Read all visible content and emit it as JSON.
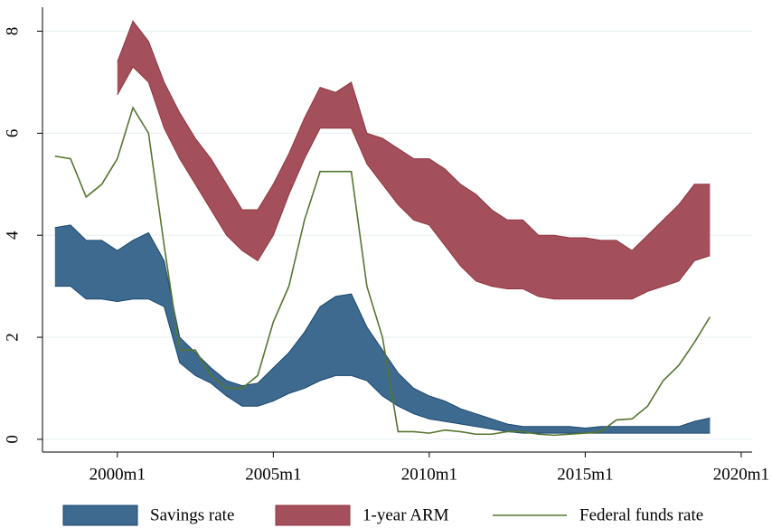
{
  "chart_data": {
    "type": "range-area",
    "x": [
      1998,
      1998.5,
      1999,
      1999.5,
      2000,
      2000.5,
      2001,
      2001.5,
      2002,
      2002.5,
      2003,
      2003.5,
      2004,
      2004.5,
      2005,
      2005.5,
      2006,
      2006.5,
      2007,
      2007.5,
      2008,
      2008.5,
      2009,
      2009.5,
      2010,
      2010.5,
      2011,
      2011.5,
      2012,
      2012.5,
      2013,
      2013.5,
      2014,
      2014.5,
      2015,
      2015.5,
      2016,
      2016.5,
      2017,
      2017.5,
      2018,
      2018.5,
      2019
    ],
    "series": [
      {
        "name": "Savings rate",
        "kind": "band",
        "color": "#3e6a8f",
        "edge": "#1a476f",
        "high": [
          4.15,
          4.2,
          3.9,
          3.9,
          3.7,
          3.9,
          4.05,
          3.5,
          2.0,
          1.7,
          1.4,
          1.15,
          1.05,
          1.1,
          1.4,
          1.7,
          2.1,
          2.6,
          2.8,
          2.85,
          2.2,
          1.75,
          1.3,
          1.0,
          0.85,
          0.75,
          0.6,
          0.5,
          0.4,
          0.3,
          0.25,
          0.25,
          0.25,
          0.25,
          0.22,
          0.25,
          0.25,
          0.25,
          0.25,
          0.25,
          0.25,
          0.35,
          0.42
        ],
        "low": [
          3.0,
          3.0,
          2.75,
          2.75,
          2.7,
          2.75,
          2.75,
          2.6,
          1.5,
          1.25,
          1.1,
          0.85,
          0.65,
          0.65,
          0.75,
          0.9,
          1.0,
          1.15,
          1.25,
          1.25,
          1.15,
          0.85,
          0.65,
          0.5,
          0.4,
          0.35,
          0.3,
          0.25,
          0.2,
          0.15,
          0.12,
          0.12,
          0.12,
          0.12,
          0.12,
          0.12,
          0.12,
          0.12,
          0.12,
          0.12,
          0.12,
          0.12,
          0.12
        ]
      },
      {
        "name": "1-year ARM",
        "kind": "band",
        "color": "#a4505c",
        "edge": "#90353b",
        "high": [
          null,
          null,
          null,
          null,
          7.4,
          8.2,
          7.8,
          7.0,
          6.4,
          5.9,
          5.5,
          5.0,
          4.5,
          4.5,
          5.0,
          5.6,
          6.3,
          6.9,
          6.8,
          7.0,
          6.0,
          5.9,
          5.7,
          5.5,
          5.5,
          5.3,
          5.0,
          4.8,
          4.5,
          4.3,
          4.3,
          4.0,
          4.0,
          3.95,
          3.95,
          3.9,
          3.9,
          3.7,
          4.0,
          4.3,
          4.6,
          5.0,
          5.0
        ],
        "low": [
          null,
          null,
          null,
          null,
          6.75,
          7.3,
          7.0,
          6.1,
          5.5,
          5.0,
          4.5,
          4.0,
          3.7,
          3.5,
          4.0,
          4.8,
          5.5,
          6.1,
          6.1,
          6.1,
          5.4,
          5.0,
          4.6,
          4.3,
          4.2,
          3.8,
          3.4,
          3.1,
          3.0,
          2.95,
          2.95,
          2.8,
          2.75,
          2.75,
          2.75,
          2.75,
          2.75,
          2.75,
          2.9,
          3.0,
          3.1,
          3.5,
          3.6
        ]
      },
      {
        "name": "Federal funds rate",
        "kind": "line",
        "color": "#55752f",
        "values": [
          5.55,
          5.5,
          4.75,
          5.0,
          5.5,
          6.5,
          6.0,
          3.8,
          1.75,
          1.75,
          1.25,
          1.0,
          1.0,
          1.25,
          2.3,
          3.0,
          4.3,
          5.25,
          5.25,
          5.25,
          3.0,
          2.0,
          0.15,
          0.15,
          0.12,
          0.18,
          0.15,
          0.1,
          0.1,
          0.15,
          0.15,
          0.1,
          0.08,
          0.1,
          0.12,
          0.15,
          0.38,
          0.4,
          0.65,
          1.15,
          1.45,
          1.9,
          2.4
        ]
      }
    ],
    "xlim": [
      1997.6,
      2020.35
    ],
    "xticks": [
      {
        "value": 2000,
        "label": "2000m1"
      },
      {
        "value": 2005,
        "label": "2005m1"
      },
      {
        "value": 2010,
        "label": "2010m1"
      },
      {
        "value": 2015,
        "label": "2015m1"
      },
      {
        "value": 2020,
        "label": "2020m1"
      }
    ],
    "ylim": [
      -0.25,
      8.47
    ],
    "yticks": [
      0,
      2,
      4,
      6,
      8
    ],
    "grid": true,
    "legend": "bottom"
  }
}
